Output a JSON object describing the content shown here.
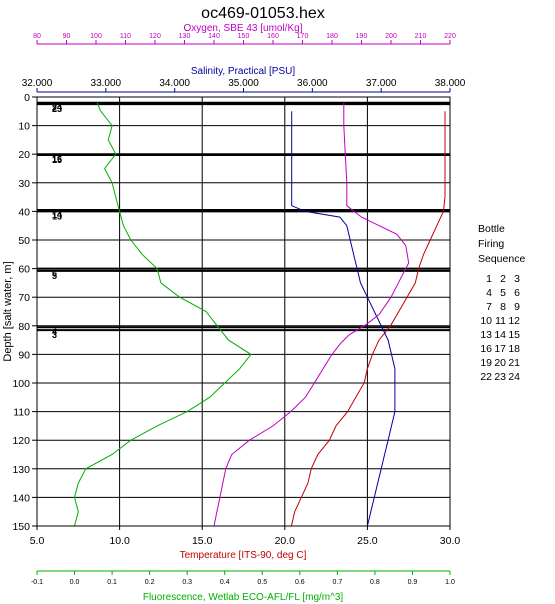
{
  "chart_data": {
    "type": "line",
    "title": "oc469-01053.hex",
    "y_axis": {
      "label": "Depth [salt water, m]",
      "range": [
        0,
        150
      ],
      "inverted": true,
      "ticks": [
        "0",
        "10",
        "20",
        "30",
        "40",
        "50",
        "60",
        "70",
        "80",
        "90",
        "100",
        "110",
        "120",
        "130",
        "140",
        "150"
      ]
    },
    "axes": {
      "oxygen": {
        "label": "Oxygen, SBE 43 [umol/Kg]",
        "color": "#c000c0",
        "range": [
          80,
          220
        ],
        "ticks": [
          "80",
          "90",
          "100",
          "110",
          "120",
          "130",
          "140",
          "150",
          "160",
          "170",
          "180",
          "190",
          "200",
          "210",
          "220"
        ]
      },
      "salinity": {
        "label": "Salinity, Practical [PSU]",
        "color": "#0000a0",
        "range": [
          32,
          38
        ],
        "ticks": [
          "32.000",
          "33.000",
          "34.000",
          "35.000",
          "36.000",
          "37.000",
          "38.000"
        ]
      },
      "temperature": {
        "label": "Temperature [ITS-90, deg C]",
        "color": "#c00000",
        "range": [
          5,
          30
        ],
        "ticks": [
          "5.0",
          "10.0",
          "15.0",
          "20.0",
          "25.0",
          "30.0"
        ]
      },
      "fluorescence": {
        "label": "Fluorescence, Wetlab ECO-AFL/FL [mg/m^3]",
        "color": "#00b000",
        "range": [
          -0.1,
          1.0
        ],
        "ticks": [
          "-0.1",
          "0.0",
          "0.1",
          "0.2",
          "0.3",
          "0.4",
          "0.5",
          "0.6",
          "0.7",
          "0.8",
          "0.9",
          "1.0"
        ]
      }
    },
    "grid": true,
    "bottle_depths": [
      {
        "depth": 2,
        "label": "24"
      },
      {
        "depth": 2.5,
        "label": "23"
      },
      {
        "depth": 20,
        "label": "16"
      },
      {
        "depth": 20.3,
        "label": "15"
      },
      {
        "depth": 39.5,
        "label": "14"
      },
      {
        "depth": 40,
        "label": "13"
      },
      {
        "depth": 60,
        "label": "6"
      },
      {
        "depth": 60.8,
        "label": "5"
      },
      {
        "depth": 80.5,
        "label": "4"
      },
      {
        "depth": 81.5,
        "label": "3"
      }
    ],
    "series": [
      {
        "axis": "temperature",
        "color": "#c00000",
        "points": [
          [
            29.7,
            5
          ],
          [
            29.7,
            20
          ],
          [
            29.7,
            35
          ],
          [
            29.6,
            40
          ],
          [
            29.2,
            45
          ],
          [
            28.8,
            50
          ],
          [
            28.4,
            55
          ],
          [
            28.1,
            60
          ],
          [
            27.9,
            65
          ],
          [
            27.4,
            70
          ],
          [
            26.9,
            75
          ],
          [
            26.4,
            80
          ],
          [
            25.7,
            85
          ],
          [
            25.3,
            90
          ],
          [
            25.0,
            95
          ],
          [
            24.8,
            100
          ],
          [
            24.3,
            105
          ],
          [
            23.8,
            110
          ],
          [
            23.1,
            115
          ],
          [
            22.7,
            120
          ],
          [
            22.0,
            125
          ],
          [
            21.6,
            130
          ],
          [
            21.4,
            135
          ],
          [
            21.0,
            140
          ],
          [
            20.6,
            145
          ],
          [
            20.4,
            150
          ]
        ]
      },
      {
        "axis": "salinity",
        "color": "#0000a0",
        "points": [
          [
            35.7,
            5
          ],
          [
            35.7,
            30
          ],
          [
            35.7,
            38
          ],
          [
            35.9,
            40
          ],
          [
            36.4,
            42
          ],
          [
            36.5,
            45
          ],
          [
            36.55,
            50
          ],
          [
            36.6,
            55
          ],
          [
            36.65,
            60
          ],
          [
            36.7,
            65
          ],
          [
            36.8,
            70
          ],
          [
            36.9,
            75
          ],
          [
            37.0,
            80
          ],
          [
            37.1,
            85
          ],
          [
            37.15,
            90
          ],
          [
            37.2,
            95
          ],
          [
            37.2,
            100
          ],
          [
            37.2,
            105
          ],
          [
            37.2,
            110
          ],
          [
            37.15,
            115
          ],
          [
            37.1,
            120
          ],
          [
            37.05,
            125
          ],
          [
            37.0,
            130
          ],
          [
            36.95,
            135
          ],
          [
            36.9,
            140
          ],
          [
            36.85,
            145
          ],
          [
            36.8,
            150
          ]
        ]
      },
      {
        "axis": "oxygen",
        "color": "#c000c0",
        "points": [
          [
            184,
            2
          ],
          [
            184,
            10
          ],
          [
            184.5,
            20
          ],
          [
            185,
            30
          ],
          [
            185,
            38
          ],
          [
            190,
            42
          ],
          [
            196,
            45
          ],
          [
            202,
            48
          ],
          [
            205,
            52
          ],
          [
            206,
            58
          ],
          [
            204,
            62
          ],
          [
            200,
            70
          ],
          [
            196,
            76
          ],
          [
            191,
            80
          ],
          [
            186,
            83
          ],
          [
            183,
            86
          ],
          [
            180,
            90
          ],
          [
            177,
            95
          ],
          [
            174,
            100
          ],
          [
            171,
            105
          ],
          [
            166,
            110
          ],
          [
            160,
            115
          ],
          [
            152,
            120
          ],
          [
            146,
            125
          ],
          [
            144,
            130
          ],
          [
            143,
            135
          ],
          [
            142,
            140
          ],
          [
            141,
            145
          ],
          [
            140,
            150
          ]
        ]
      },
      {
        "axis": "fluorescence",
        "color": "#00b000",
        "points": [
          [
            0.06,
            2
          ],
          [
            0.07,
            5
          ],
          [
            0.1,
            10
          ],
          [
            0.09,
            15
          ],
          [
            0.11,
            20
          ],
          [
            0.08,
            25
          ],
          [
            0.1,
            30
          ],
          [
            0.11,
            35
          ],
          [
            0.12,
            40
          ],
          [
            0.13,
            45
          ],
          [
            0.15,
            50
          ],
          [
            0.18,
            55
          ],
          [
            0.22,
            60
          ],
          [
            0.23,
            65
          ],
          [
            0.28,
            70
          ],
          [
            0.35,
            75
          ],
          [
            0.38,
            80
          ],
          [
            0.41,
            85
          ],
          [
            0.47,
            90
          ],
          [
            0.44,
            95
          ],
          [
            0.4,
            100
          ],
          [
            0.36,
            105
          ],
          [
            0.3,
            110
          ],
          [
            0.22,
            115
          ],
          [
            0.15,
            120
          ],
          [
            0.1,
            125
          ],
          [
            0.03,
            130
          ],
          [
            0.01,
            135
          ],
          [
            0.0,
            140
          ],
          [
            0.01,
            145
          ],
          [
            0.0,
            150
          ]
        ]
      }
    ]
  },
  "bottle_legend": {
    "header": [
      "Bottle",
      "Firing",
      "Sequence"
    ],
    "rows": [
      [
        "1",
        "2",
        "3"
      ],
      [
        "4",
        "5",
        "6"
      ],
      [
        "7",
        "8",
        "9"
      ],
      [
        "10",
        "11",
        "12"
      ],
      [
        "13",
        "14",
        "15"
      ],
      [
        "16",
        "17",
        "18"
      ],
      [
        "19",
        "20",
        "21"
      ],
      [
        "22",
        "23",
        "24"
      ]
    ]
  }
}
